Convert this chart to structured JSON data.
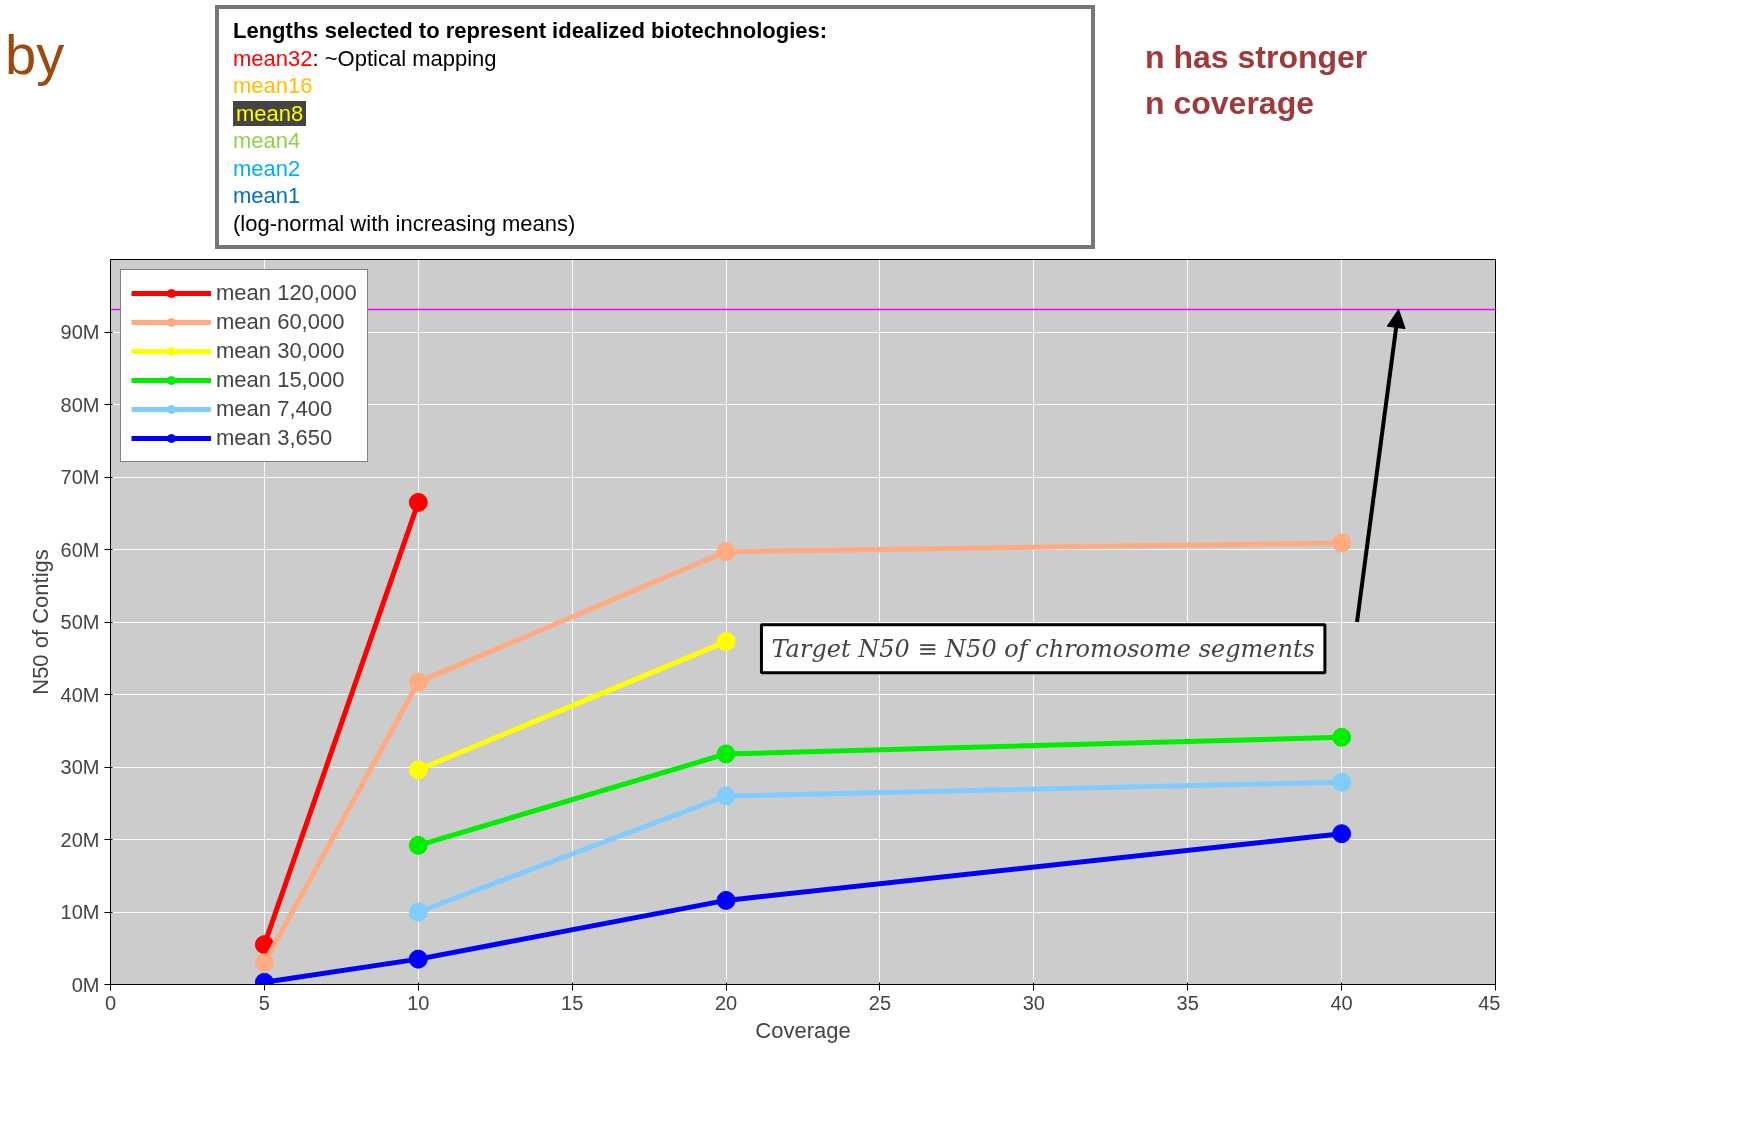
{
  "chart_data": {
    "type": "line",
    "title": "by",
    "xlabel": "Coverage",
    "ylabel": "N50 of Contigs",
    "x": [
      5,
      10,
      20,
      40
    ],
    "series": [
      {
        "name": "mean 120,000",
        "color": "#ff0000",
        "values": [
          5.5,
          66.5,
          null,
          null
        ]
      },
      {
        "name": "mean 60,000",
        "color": "#ffaa80",
        "values": [
          3,
          41.7,
          59.7,
          60.9
        ]
      },
      {
        "name": "mean 30,000",
        "color": "#ffff00",
        "values": [
          null,
          29.6,
          47.3,
          null
        ]
      },
      {
        "name": "mean 15,000",
        "color": "#00ee00",
        "values": [
          null,
          19.2,
          31.8,
          34.1
        ]
      },
      {
        "name": "mean 7,400",
        "color": "#80ccff",
        "values": [
          null,
          10,
          26,
          27.9
        ]
      },
      {
        "name": "mean 3,650",
        "color": "#0000ff",
        "values": [
          0.3,
          3.5,
          11.6,
          20.8
        ]
      }
    ],
    "xlim": [
      0,
      45
    ],
    "xticks": [
      0,
      5,
      10,
      15,
      20,
      25,
      30,
      35,
      40,
      45
    ],
    "ylim": [
      0,
      100
    ],
    "yticks": [
      {
        "value": 0,
        "label": "0M"
      },
      {
        "value": 10,
        "label": "10M"
      },
      {
        "value": 20,
        "label": "20M"
      },
      {
        "value": 30,
        "label": "30M"
      },
      {
        "value": 40,
        "label": "40M"
      },
      {
        "value": 50,
        "label": "50M"
      },
      {
        "value": 60,
        "label": "60M"
      },
      {
        "value": 70,
        "label": "70M"
      },
      {
        "value": 80,
        "label": "80M"
      },
      {
        "value": 90,
        "label": "90M"
      }
    ],
    "grid": true,
    "legend": "top left",
    "marker": "circle",
    "line_style": "solid",
    "ref_lines": [
      {
        "axis": "y",
        "value": 93.1,
        "color": "#ff00ff"
      }
    ],
    "annotations": [
      "n has stronger",
      "n coverage",
      "Lengths selected to represent idealized biotechnologies:",
      "mean32: ~Optical mapping",
      "mean16",
      "mean8",
      "mean4",
      "mean2",
      "mean1",
      "(log-normal with increasing means)",
      "Target N50 ≡ N50 of chromosome segments"
    ]
  }
}
